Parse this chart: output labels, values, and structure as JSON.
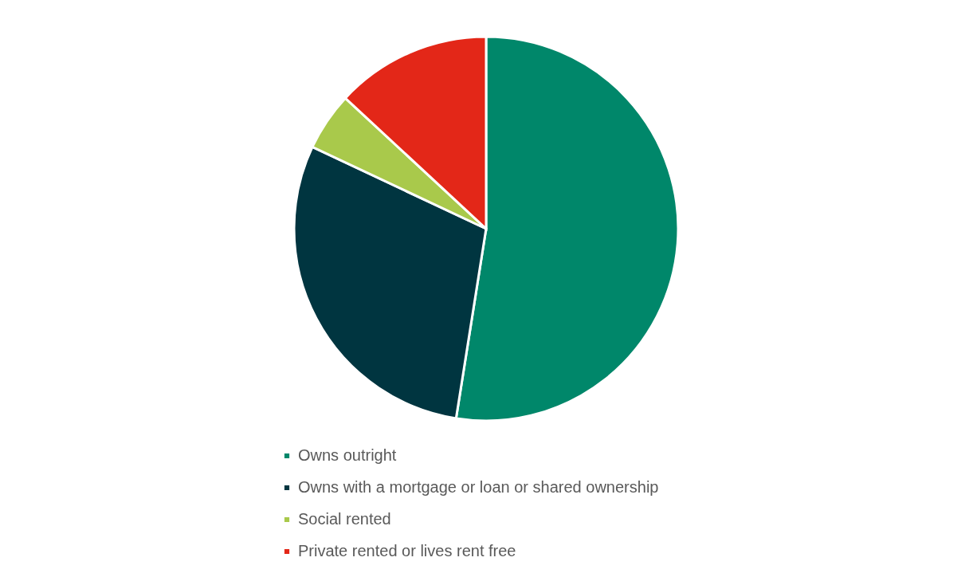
{
  "chart_data": {
    "type": "pie",
    "categories": [
      "Owns outright",
      "Owns with a mortgage or loan or shared ownership",
      "Social rented",
      "Private rented or lives rent free"
    ],
    "values": [
      52.5,
      29.5,
      4.9,
      13.1
    ],
    "colors": [
      "#00876a",
      "#003540",
      "#a9c94b",
      "#e32718"
    ],
    "legend": "bottom"
  }
}
